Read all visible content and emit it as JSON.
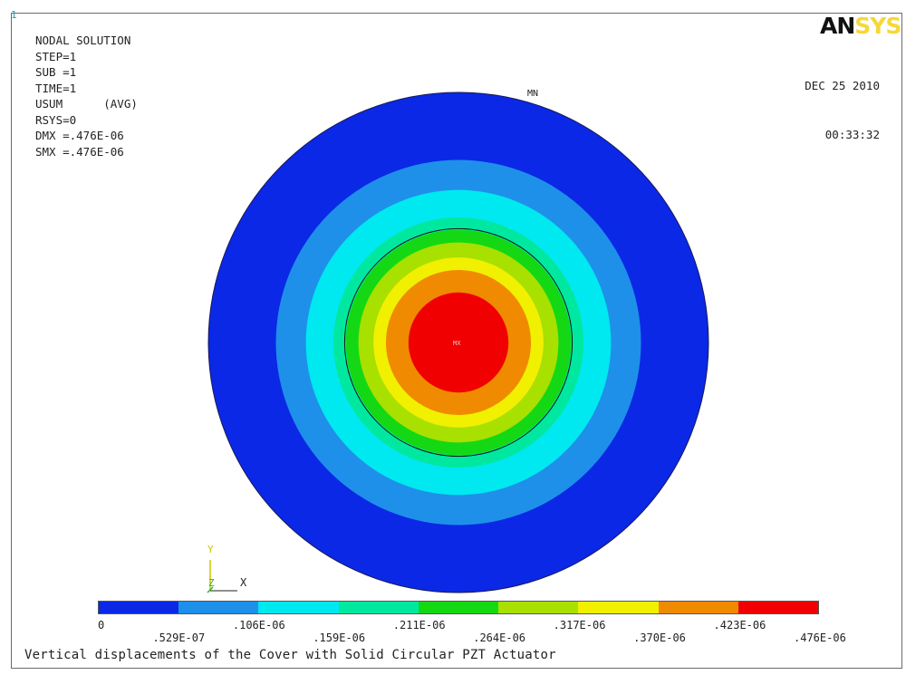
{
  "window_number": "1",
  "info": {
    "lines": [
      "NODAL SOLUTION",
      "",
      "STEP=1",
      "SUB =1",
      "TIME=1",
      "USUM      (AVG)",
      "RSYS=0",
      "DMX =.476E-06",
      "SMX =.476E-06"
    ]
  },
  "logo": {
    "part1": "AN",
    "part2": "SYS"
  },
  "date": {
    "line1": "DEC 25 2010",
    "line2": "00:33:32"
  },
  "markers": {
    "min": "MN",
    "max": "MX"
  },
  "triad": {
    "y": "Y",
    "z": "Z",
    "x": "X"
  },
  "legend": {
    "colors": [
      "#0a28e6",
      "#1e90ea",
      "#00e8f0",
      "#00e8a0",
      "#14d814",
      "#a8e000",
      "#f0f000",
      "#f08a00",
      "#f00000"
    ],
    "labels_bottom": [
      "0",
      ".106E-06",
      ".211E-06",
      ".317E-06",
      ".423E-06"
    ],
    "labels_top": [
      ".529E-07",
      ".159E-06",
      ".264E-06",
      ".370E-06",
      ".476E-06"
    ]
  },
  "contour": {
    "colors_outer_to_inner": [
      "#0a28e6",
      "#1e90ea",
      "#00e8f0",
      "#00e8a0",
      "#14d814",
      "#a8e000",
      "#f0f000",
      "#f08a00",
      "#f00000"
    ],
    "band_radius_fraction": [
      1.0,
      0.73,
      0.61,
      0.5,
      0.45,
      0.4,
      0.34,
      0.29,
      0.2
    ],
    "actuator_radius_fraction": 0.455
  },
  "caption": "Vertical displacements of the Cover with Solid Circular PZT Actuator"
}
